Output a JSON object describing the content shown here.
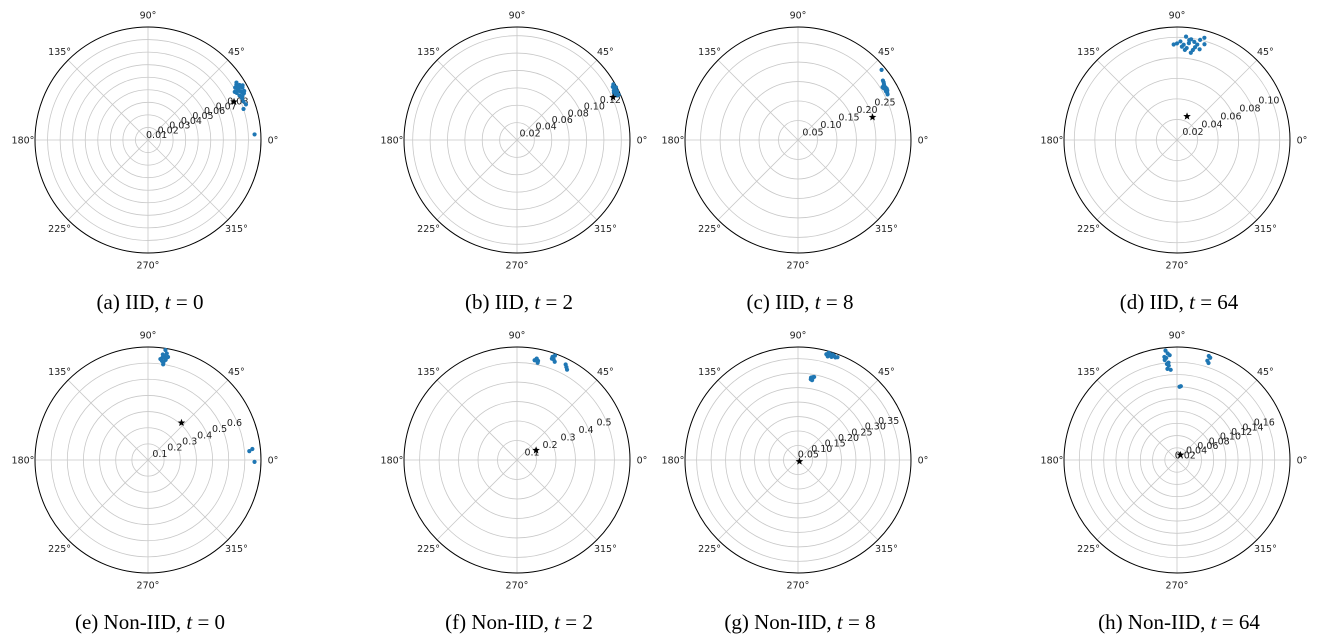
{
  "chart_data": [
    {
      "type": "scatter",
      "projection": "polar",
      "caption": {
        "label": "(a) IID,",
        "var": "t",
        "eq": " = 0"
      },
      "angle_ticks": [
        "0°",
        "45°",
        "90°",
        "135°",
        "180°",
        "225°",
        "270°",
        "315°"
      ],
      "r_ticks": [
        "0.01",
        "0.02",
        "0.03",
        "0.04",
        "0.05",
        "0.06",
        "0.07",
        "0.08"
      ],
      "rmax": 0.09,
      "rlabel_angle": 22.5,
      "series": [
        {
          "values": [
            [
              28,
              0.083
            ],
            [
              30,
              0.084
            ],
            [
              31,
              0.085
            ],
            [
              29,
              0.082
            ],
            [
              27,
              0.084
            ],
            [
              32,
              0.083
            ],
            [
              26,
              0.085
            ],
            [
              29,
              0.086
            ],
            [
              31,
              0.081
            ],
            [
              30,
              0.082
            ],
            [
              28,
              0.08
            ],
            [
              25,
              0.083
            ],
            [
              27,
              0.086
            ],
            [
              33,
              0.084
            ],
            [
              24,
              0.082
            ],
            [
              30,
              0.087
            ],
            [
              29,
              0.079
            ],
            [
              26,
              0.081
            ],
            [
              22,
              0.082
            ],
            [
              20,
              0.083
            ],
            [
              18,
              0.08
            ],
            [
              3,
              0.085
            ]
          ]
        }
      ],
      "marker": [
        [
          24,
          0.075
        ]
      ],
      "colors": {
        "points": "#1f77b4",
        "marker": "#000000"
      }
    },
    {
      "type": "scatter",
      "projection": "polar",
      "caption": {
        "label": "(b) IID,",
        "var": "t",
        "eq": " = 2"
      },
      "angle_ticks": [
        "0°",
        "45°",
        "90°",
        "135°",
        "180°",
        "225°",
        "270°",
        "315°"
      ],
      "r_ticks": [
        "0.02",
        "0.04",
        "0.06",
        "0.08",
        "0.10",
        "0.12"
      ],
      "rmax": 0.13,
      "rlabel_angle": 22.5,
      "series": [
        {
          "values": [
            [
              26,
              0.126
            ],
            [
              27,
              0.127
            ],
            [
              25,
              0.125
            ],
            [
              28,
              0.127
            ],
            [
              26,
              0.128
            ],
            [
              24,
              0.126
            ],
            [
              25,
              0.127
            ],
            [
              27,
              0.125
            ],
            [
              29,
              0.126
            ],
            [
              26,
              0.124
            ],
            [
              24,
              0.128
            ],
            [
              28,
              0.129
            ],
            [
              30,
              0.128
            ]
          ]
        }
      ],
      "marker": [
        [
          24,
          0.121
        ]
      ],
      "colors": {
        "points": "#1f77b4",
        "marker": "#000000"
      }
    },
    {
      "type": "scatter",
      "projection": "polar",
      "caption": {
        "label": "(c) IID,",
        "var": "t",
        "eq": " = 8"
      },
      "angle_ticks": [
        "0°",
        "45°",
        "90°",
        "135°",
        "180°",
        "225°",
        "270°",
        "315°"
      ],
      "r_ticks": [
        "0.05",
        "0.10",
        "0.15",
        "0.20",
        "0.25"
      ],
      "rmax": 0.29,
      "rlabel_angle": 22.5,
      "series": [
        {
          "values": [
            [
              30,
              0.26
            ],
            [
              31,
              0.262
            ],
            [
              29,
              0.258
            ],
            [
              32,
              0.261
            ],
            [
              30,
              0.263
            ],
            [
              28,
              0.259
            ],
            [
              31,
              0.257
            ],
            [
              33,
              0.263
            ],
            [
              29,
              0.262
            ],
            [
              34,
              0.265
            ],
            [
              27,
              0.258
            ],
            [
              35,
              0.266
            ],
            [
              40,
              0.28
            ],
            [
              32,
              0.256
            ]
          ]
        }
      ],
      "marker": [
        [
          17,
          0.2
        ]
      ],
      "colors": {
        "points": "#1f77b4",
        "marker": "#000000"
      }
    },
    {
      "type": "scatter",
      "projection": "polar",
      "caption": {
        "label": "(d) IID,",
        "var": "t",
        "eq": " = 64"
      },
      "angle_ticks": [
        "0°",
        "45°",
        "90°",
        "135°",
        "180°",
        "225°",
        "270°",
        "315°"
      ],
      "r_ticks": [
        "0.02",
        "0.04",
        "0.06",
        "0.08",
        "0.10"
      ],
      "rmax": 0.11,
      "rlabel_angle": 22.5,
      "series": [
        {
          "values": [
            [
              83,
              0.095
            ],
            [
              86,
              0.093
            ],
            [
              80,
              0.097
            ],
            [
              84,
              0.09
            ],
            [
              78,
              0.095
            ],
            [
              88,
              0.096
            ],
            [
              82,
              0.099
            ],
            [
              75,
              0.103
            ],
            [
              85,
              0.088
            ],
            [
              79,
              0.092
            ],
            [
              90,
              0.094
            ],
            [
              81,
              0.086
            ],
            [
              77,
              0.1
            ],
            [
              87,
              0.091
            ],
            [
              83,
              0.098
            ],
            [
              74,
              0.097
            ],
            [
              92,
              0.093
            ],
            [
              80,
              0.089
            ],
            [
              85,
              0.101
            ],
            [
              76,
              0.091
            ]
          ]
        }
      ],
      "marker": [
        [
          67,
          0.025
        ]
      ],
      "colors": {
        "points": "#1f77b4",
        "marker": "#000000"
      }
    },
    {
      "type": "scatter",
      "projection": "polar",
      "caption": {
        "label": "(e) Non-IID,",
        "var": "t",
        "eq": " = 0"
      },
      "angle_ticks": [
        "0°",
        "45°",
        "90°",
        "135°",
        "180°",
        "225°",
        "270°",
        "315°"
      ],
      "r_ticks": [
        "0.1",
        "0.2",
        "0.3",
        "0.4",
        "0.5",
        "0.6"
      ],
      "rmax": 0.7,
      "rlabel_angle": 22.5,
      "series": [
        {
          "values": [
            [
              81,
              0.65
            ],
            [
              80,
              0.63
            ],
            [
              82,
              0.62
            ],
            [
              81,
              0.61
            ],
            [
              80,
              0.64
            ],
            [
              82,
              0.66
            ],
            [
              81,
              0.6
            ],
            [
              80,
              0.67
            ],
            [
              82,
              0.64
            ],
            [
              83,
              0.63
            ],
            [
              79,
              0.65
            ],
            [
              81,
              0.69
            ],
            [
              6,
              0.65
            ],
            [
              5,
              0.63
            ],
            [
              -1,
              0.66
            ]
          ]
        }
      ],
      "marker": [
        [
          48,
          0.31
        ]
      ],
      "colors": {
        "points": "#1f77b4",
        "marker": "#000000"
      }
    },
    {
      "type": "scatter",
      "projection": "polar",
      "caption": {
        "label": "(f) Non-IID,",
        "var": "t",
        "eq": " = 2"
      },
      "angle_ticks": [
        "0°",
        "45°",
        "90°",
        "135°",
        "180°",
        "225°",
        "270°",
        "315°"
      ],
      "r_ticks": [
        "0.1",
        "0.2",
        "0.3",
        "0.4",
        "0.5"
      ],
      "rmax": 0.58,
      "rlabel_angle": 22.5,
      "series": [
        {
          "values": [
            [
              70,
              0.55
            ],
            [
              71,
              0.56
            ],
            [
              69,
              0.54
            ],
            [
              70,
              0.57
            ],
            [
              71,
              0.55
            ],
            [
              62,
              0.54
            ],
            [
              61,
              0.53
            ],
            [
              63,
              0.55
            ],
            [
              78,
              0.52
            ],
            [
              79,
              0.53
            ],
            [
              78,
              0.51
            ],
            [
              80,
              0.52
            ]
          ]
        }
      ],
      "marker": [
        [
          27,
          0.11
        ]
      ],
      "colors": {
        "points": "#1f77b4",
        "marker": "#000000"
      }
    },
    {
      "type": "scatter",
      "projection": "polar",
      "caption": {
        "label": "(g) Non-IID,",
        "var": "t",
        "eq": " = 8"
      },
      "angle_ticks": [
        "0°",
        "45°",
        "90°",
        "135°",
        "180°",
        "225°",
        "270°",
        "315°"
      ],
      "r_ticks": [
        "0.05",
        "0.10",
        "0.15",
        "0.20",
        "0.25",
        "0.30",
        "0.35"
      ],
      "rmax": 0.39,
      "rlabel_angle": 22.5,
      "series": [
        {
          "values": [
            [
              74,
              0.385
            ],
            [
              73,
              0.38
            ],
            [
              75,
              0.378
            ],
            [
              72,
              0.383
            ],
            [
              71,
              0.381
            ],
            [
              70,
              0.377
            ],
            [
              69,
              0.38
            ],
            [
              74,
              0.372
            ],
            [
              72,
              0.374
            ],
            [
              80,
              0.29
            ],
            [
              81,
              0.288
            ],
            [
              80,
              0.28
            ],
            [
              81,
              0.282
            ],
            [
              80,
              0.285
            ],
            [
              79,
              0.292
            ]
          ]
        }
      ],
      "marker": [
        [
          -45,
          0.007
        ]
      ],
      "colors": {
        "points": "#1f77b4",
        "marker": "#000000"
      }
    },
    {
      "type": "scatter",
      "projection": "polar",
      "caption": {
        "label": "(h) Non-IID,",
        "var": "t",
        "eq": " = 64"
      },
      "angle_ticks": [
        "0°",
        "45°",
        "90°",
        "135°",
        "180°",
        "225°",
        "270°",
        "315°"
      ],
      "r_ticks": [
        "0.02",
        "0.04",
        "0.06",
        "0.08",
        "0.10",
        "0.12",
        "0.14",
        "0.16"
      ],
      "rmax": 0.185,
      "rlabel_angle": 22.5,
      "series": [
        {
          "values": [
            [
              96,
              0.18
            ],
            [
              95,
              0.175
            ],
            [
              97,
              0.17
            ],
            [
              96,
              0.168
            ],
            [
              94,
              0.172
            ],
            [
              97,
              0.165
            ],
            [
              95,
              0.16
            ],
            [
              96,
              0.158
            ],
            [
              95,
              0.155
            ],
            [
              96,
              0.15
            ],
            [
              94,
              0.148
            ],
            [
              73,
              0.178
            ],
            [
              72,
              0.176
            ],
            [
              73,
              0.17
            ],
            [
              72,
              0.167
            ],
            [
              88,
              0.12
            ],
            [
              87,
              0.121
            ]
          ]
        }
      ],
      "marker": [
        [
          56,
          0.01
        ]
      ],
      "colors": {
        "points": "#1f77b4",
        "marker": "#000000"
      }
    }
  ]
}
